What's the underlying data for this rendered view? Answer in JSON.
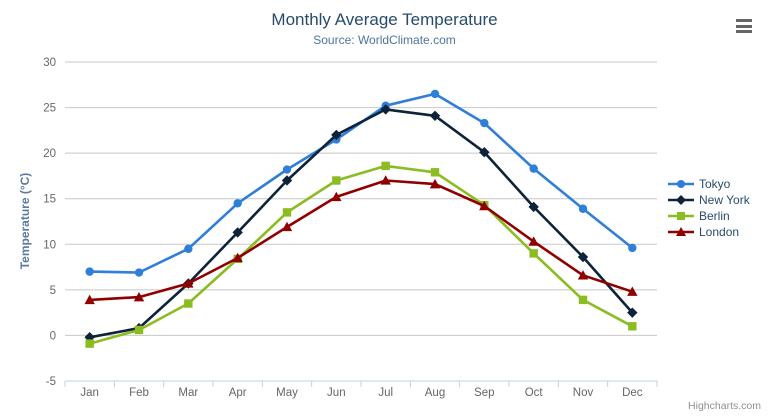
{
  "chart_data": {
    "type": "line",
    "title": "Monthly Average Temperature",
    "subtitle": "Source: WorldClimate.com",
    "categories": [
      "Jan",
      "Feb",
      "Mar",
      "Apr",
      "May",
      "Jun",
      "Jul",
      "Aug",
      "Sep",
      "Oct",
      "Nov",
      "Dec"
    ],
    "xlabel": "",
    "ylabel": "Temperature (°C)",
    "ylim": [
      -5,
      30
    ],
    "ytick_interval": 5,
    "grid": true,
    "legend_position": "right",
    "series": [
      {
        "name": "Tokyo",
        "color": "#2f7ed8",
        "marker": "circle",
        "values": [
          7.0,
          6.9,
          9.5,
          14.5,
          18.2,
          21.5,
          25.2,
          26.5,
          23.3,
          18.3,
          13.9,
          9.6
        ]
      },
      {
        "name": "New York",
        "color": "#0d233a",
        "marker": "diamond",
        "values": [
          -0.2,
          0.8,
          5.7,
          11.3,
          17.0,
          22.0,
          24.8,
          24.1,
          20.1,
          14.1,
          8.6,
          2.5
        ]
      },
      {
        "name": "Berlin",
        "color": "#8bbc21",
        "marker": "square",
        "values": [
          -0.9,
          0.6,
          3.5,
          8.4,
          13.5,
          17.0,
          18.6,
          17.9,
          14.3,
          9.0,
          3.9,
          1.0
        ]
      },
      {
        "name": "London",
        "color": "#910000",
        "marker": "triangle",
        "values": [
          3.9,
          4.2,
          5.7,
          8.5,
          11.9,
          15.2,
          17.0,
          16.6,
          14.2,
          10.3,
          6.6,
          4.8
        ]
      }
    ]
  },
  "credits": {
    "label": "Highcharts.com"
  },
  "colors": {
    "title": "#274b6d",
    "subtitle": "#4d759e",
    "axis_title": "#5a7a9e",
    "axis_labels": "#666666",
    "gridline": "#c8c8c8",
    "axis_line": "#c0d0e0",
    "legend_text": "#274b6d",
    "credits": "#909090",
    "menu_icon": "#666666"
  }
}
